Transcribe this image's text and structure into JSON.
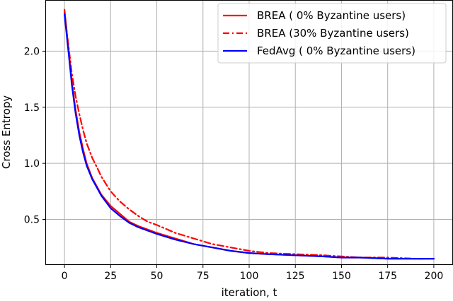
{
  "chart_data": {
    "type": "line",
    "title": "",
    "xlabel": "iteration, t",
    "ylabel": "Cross Entropy",
    "xlim": [
      -10,
      210
    ],
    "ylim": [
      0.1,
      2.45
    ],
    "xticks": [
      0,
      25,
      50,
      75,
      100,
      125,
      150,
      175,
      200
    ],
    "yticks": [
      0.5,
      1.0,
      1.5,
      2.0
    ],
    "ytick_labels": [
      "0.5",
      "1.0",
      "1.5",
      "2.0"
    ],
    "grid": true,
    "legend_position": "top-right",
    "series": [
      {
        "name": "BREA ( 0% Byzantine users)",
        "color": "#ff0000",
        "style": "solid",
        "x": [
          0,
          2,
          4,
          6,
          8,
          10,
          12,
          15,
          18,
          20,
          25,
          30,
          35,
          40,
          45,
          50,
          60,
          70,
          80,
          90,
          100,
          110,
          125,
          140,
          150,
          160,
          175,
          190,
          200
        ],
        "y": [
          2.37,
          2.05,
          1.72,
          1.48,
          1.28,
          1.13,
          1.0,
          0.87,
          0.78,
          0.72,
          0.62,
          0.55,
          0.48,
          0.44,
          0.41,
          0.38,
          0.33,
          0.28,
          0.25,
          0.22,
          0.2,
          0.19,
          0.18,
          0.17,
          0.16,
          0.16,
          0.15,
          0.15,
          0.15
        ]
      },
      {
        "name": "BREA (30% Byzantine users)",
        "color": "#ff0000",
        "style": "dashdot",
        "x": [
          0,
          2,
          4,
          6,
          8,
          10,
          12,
          15,
          18,
          20,
          25,
          30,
          35,
          40,
          45,
          50,
          60,
          70,
          80,
          90,
          100,
          110,
          125,
          140,
          150,
          160,
          175,
          190,
          200
        ],
        "y": [
          2.35,
          2.07,
          1.8,
          1.6,
          1.44,
          1.3,
          1.18,
          1.05,
          0.95,
          0.88,
          0.75,
          0.66,
          0.59,
          0.53,
          0.48,
          0.45,
          0.38,
          0.33,
          0.28,
          0.25,
          0.22,
          0.2,
          0.19,
          0.18,
          0.17,
          0.16,
          0.16,
          0.15,
          0.15
        ]
      },
      {
        "name": "FedAvg ( 0% Byzantine users)",
        "color": "#0000ff",
        "style": "solid",
        "x": [
          0,
          2,
          4,
          6,
          8,
          10,
          12,
          15,
          18,
          20,
          25,
          30,
          35,
          40,
          45,
          50,
          60,
          70,
          80,
          90,
          100,
          110,
          125,
          140,
          150,
          160,
          175,
          190,
          200
        ],
        "y": [
          2.33,
          2.02,
          1.7,
          1.45,
          1.25,
          1.1,
          0.98,
          0.86,
          0.77,
          0.71,
          0.6,
          0.53,
          0.47,
          0.43,
          0.4,
          0.37,
          0.32,
          0.28,
          0.25,
          0.22,
          0.2,
          0.19,
          0.18,
          0.17,
          0.16,
          0.16,
          0.15,
          0.15,
          0.15
        ]
      }
    ]
  }
}
